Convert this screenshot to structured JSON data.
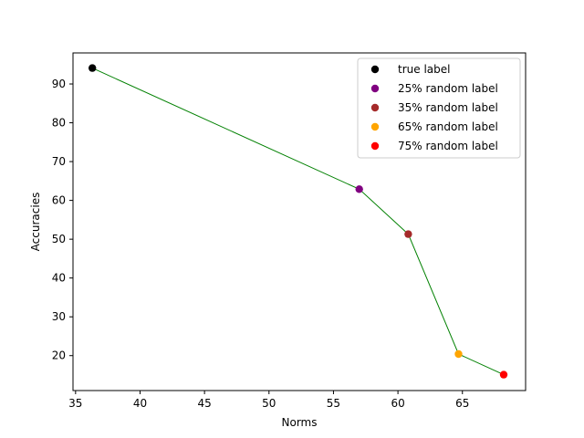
{
  "chart_data": {
    "type": "scatter",
    "title": "",
    "xlabel": "Norms",
    "ylabel": "Accuracies",
    "xlim": [
      34.8,
      69.9
    ],
    "ylim": [
      11.0,
      98.0
    ],
    "xticks": [
      35,
      40,
      45,
      50,
      55,
      60,
      65
    ],
    "yticks": [
      20,
      30,
      40,
      50,
      60,
      70,
      80,
      90
    ],
    "grid": false,
    "legend_position": "top-right",
    "line_color": "#008000",
    "series": [
      {
        "name": "true label",
        "color": "#000000",
        "x": [
          36.3
        ],
        "y": [
          94.1
        ]
      },
      {
        "name": "25% random label",
        "color": "#800080",
        "x": [
          57.0
        ],
        "y": [
          62.9
        ]
      },
      {
        "name": "35% random label",
        "color": "#a52a2a",
        "x": [
          60.8
        ],
        "y": [
          51.3
        ]
      },
      {
        "name": "65% random label",
        "color": "#ffa500",
        "x": [
          64.7
        ],
        "y": [
          20.4
        ]
      },
      {
        "name": "75% random label",
        "color": "#ff0000",
        "x": [
          68.2
        ],
        "y": [
          15.1
        ]
      }
    ]
  }
}
